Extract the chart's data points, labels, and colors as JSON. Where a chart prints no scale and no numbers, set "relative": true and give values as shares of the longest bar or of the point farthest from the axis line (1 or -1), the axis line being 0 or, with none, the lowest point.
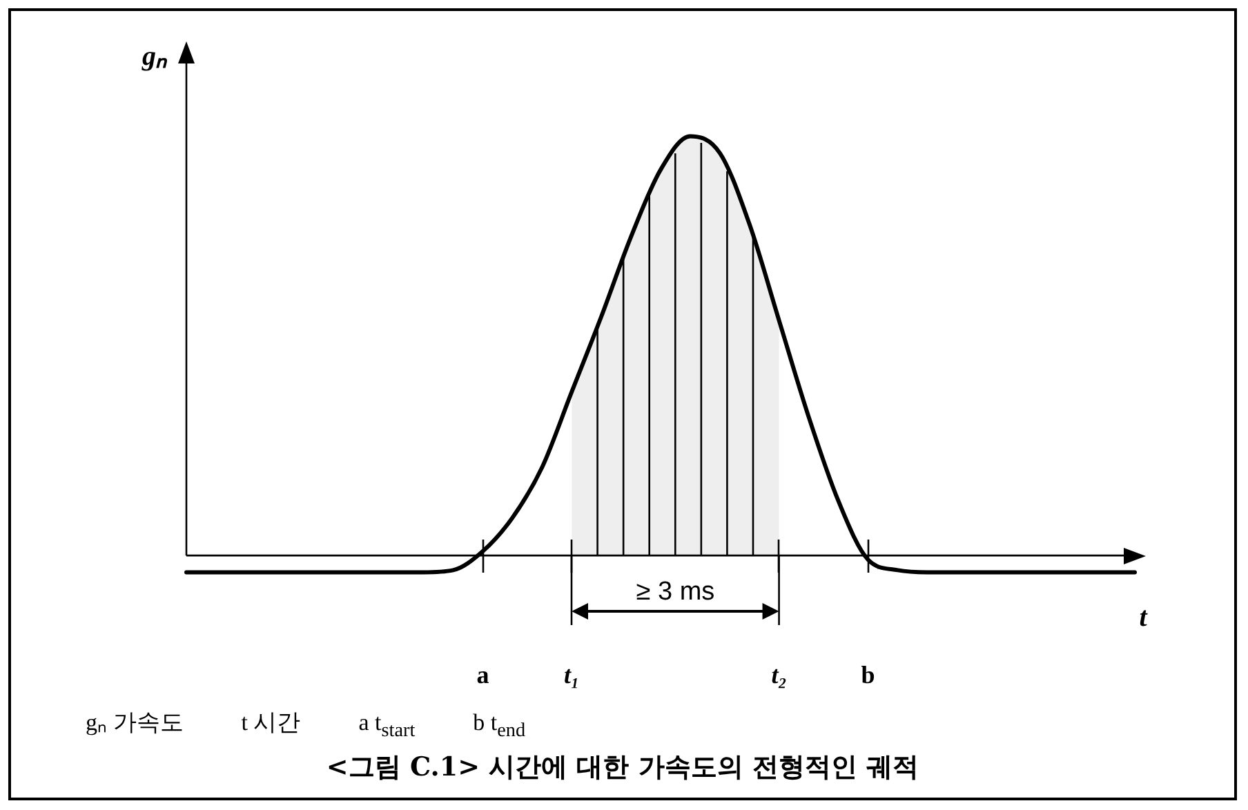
{
  "chart_data": {
    "type": "line",
    "title": "<그림 C.1> 시간에 대한 가속도의 전형적인 궤적",
    "xlabel": "t",
    "ylabel": "gₙ",
    "relative": true,
    "marker": "none",
    "line_style": "solid",
    "categories": [
      null,
      null,
      null,
      null,
      null,
      null,
      null,
      null,
      null,
      null,
      "a",
      null,
      null,
      "t₁",
      null,
      null,
      null,
      null,
      null,
      null,
      "t₂",
      null,
      null,
      "b",
      null,
      null,
      null,
      null,
      null,
      null,
      null,
      null,
      null
    ],
    "series": [
      {
        "color": "#000000",
        "values": [
          -0.04,
          -0.04,
          -0.04,
          -0.04,
          -0.04,
          -0.04,
          -0.04,
          -0.04,
          -0.04,
          -0.035,
          0.01,
          0.09,
          0.21,
          0.39,
          0.57,
          0.76,
          0.92,
          1,
          0.96,
          0.79,
          0.56,
          0.33,
          0.13,
          -0.01,
          -0.035,
          -0.04,
          -0.04,
          -0.04,
          -0.04,
          -0.04,
          -0.04,
          -0.04,
          -0.04
        ]
      },
      {
        "type": "area",
        "name": "≥ 3 ms",
        "color": "#eeeeee",
        "values": [
          null,
          null,
          null,
          null,
          null,
          null,
          null,
          null,
          null,
          null,
          null,
          null,
          null,
          0.39,
          0.57,
          0.76,
          0.92,
          1,
          0.96,
          0.79,
          0.56,
          null,
          null,
          null,
          null,
          null,
          null,
          null,
          null,
          null,
          null,
          null,
          null
        ]
      }
    ],
    "annotations": [
      "gₙ 가속도",
      "t 시간",
      "a t$_{start}$",
      "b t$_{end}$"
    ]
  }
}
